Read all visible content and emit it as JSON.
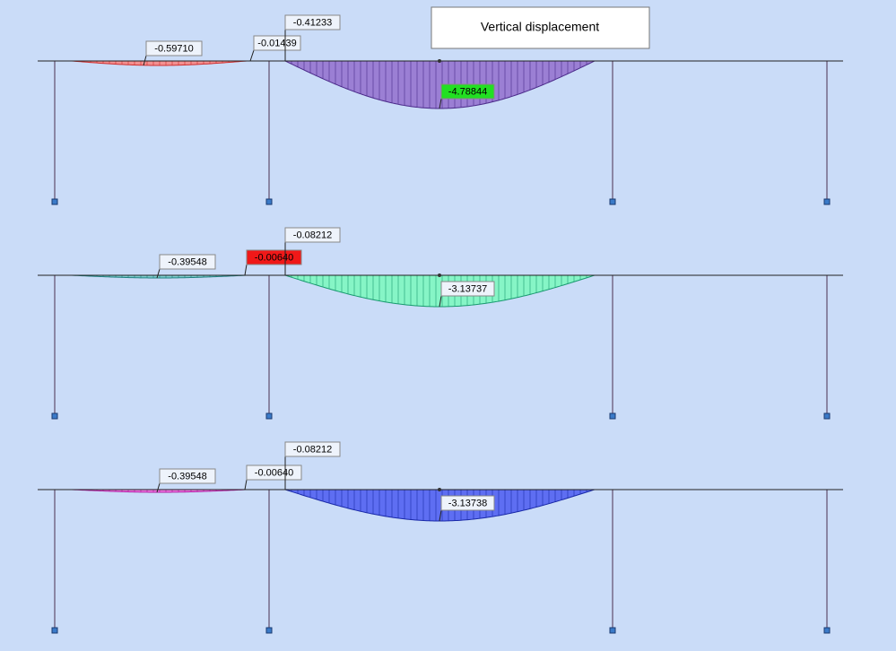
{
  "title": "Vertical displacement",
  "panels": [
    {
      "labels": [
        "-0.59710",
        "-0.01439",
        "-0.41233",
        "-4.78844"
      ]
    },
    {
      "labels": [
        "-0.39548",
        "-0.00640",
        "-0.08212",
        "-3.13737"
      ]
    },
    {
      "labels": [
        "-0.39548",
        "-0.00640",
        "-0.08212",
        "-3.13738"
      ]
    }
  ]
}
